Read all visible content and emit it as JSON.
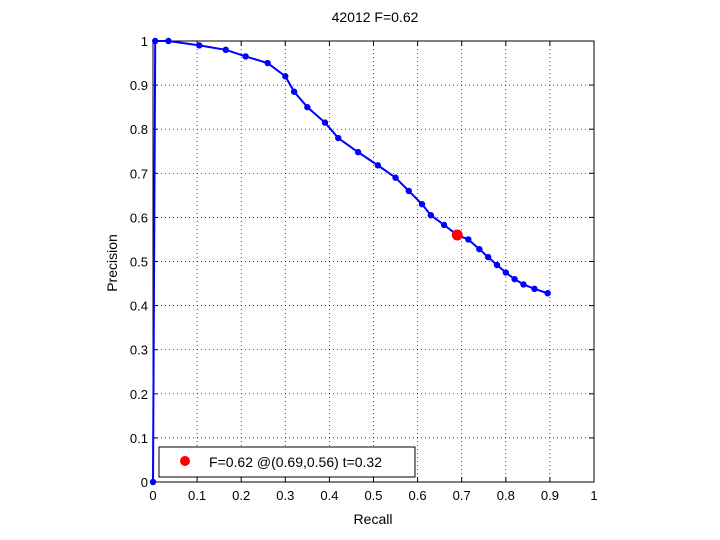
{
  "chart_data": {
    "type": "line",
    "title": "42012 F=0.62",
    "xlabel": "Recall",
    "ylabel": "Precision",
    "xlim": [
      0,
      1
    ],
    "ylim": [
      0,
      1
    ],
    "xticks": [
      "0",
      "0.1",
      "0.2",
      "0.3",
      "0.4",
      "0.5",
      "0.6",
      "0.7",
      "0.8",
      "0.9",
      "1"
    ],
    "yticks": [
      "0",
      "0.1",
      "0.2",
      "0.3",
      "0.4",
      "0.5",
      "0.6",
      "0.7",
      "0.8",
      "0.9",
      "1"
    ],
    "grid": true,
    "legend_position": "bottom-left",
    "series": [
      {
        "color": "#0000ff",
        "x": [
          0.0,
          0.005,
          0.035,
          0.105,
          0.165,
          0.21,
          0.26,
          0.3,
          0.32,
          0.35,
          0.39,
          0.42,
          0.465,
          0.51,
          0.55,
          0.58,
          0.61,
          0.63,
          0.66,
          0.69,
          0.715,
          0.74,
          0.76,
          0.78,
          0.8,
          0.82,
          0.84,
          0.865,
          0.895
        ],
        "y": [
          0.0,
          1.0,
          1.0,
          0.99,
          0.98,
          0.965,
          0.95,
          0.92,
          0.885,
          0.85,
          0.815,
          0.78,
          0.748,
          0.718,
          0.69,
          0.66,
          0.63,
          0.605,
          0.583,
          0.56,
          0.55,
          0.528,
          0.51,
          0.492,
          0.475,
          0.46,
          0.448,
          0.438,
          0.428
        ]
      }
    ],
    "highlight": {
      "x": 0.69,
      "y": 0.56,
      "color": "#ff0000"
    },
    "legend": {
      "label": "F=0.62 @(0.69,0.56) t=0.32",
      "marker_color": "#ff0000"
    }
  }
}
